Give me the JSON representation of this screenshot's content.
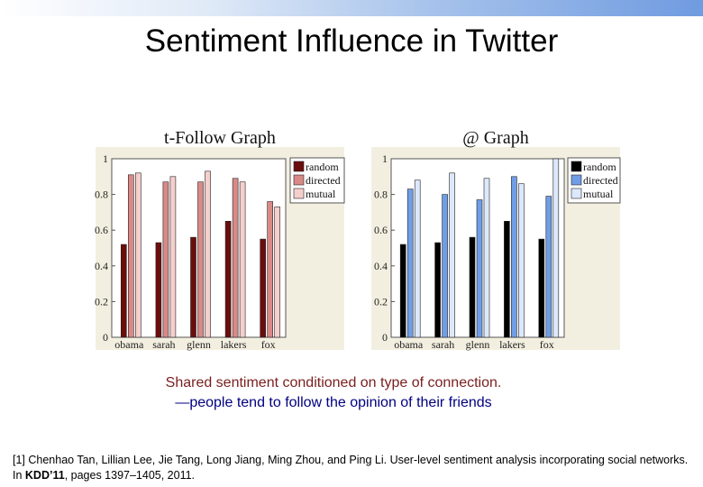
{
  "slide": {
    "title": "Sentiment Influence in Twitter",
    "caption_line1": "Shared sentiment conditioned on type of connection.",
    "caption_line2": "—people tend to follow the opinion of their friends",
    "reference_prefix": "[1] Chenhao Tan, Lillian Lee, Jie Tang, Long Jiang, Ming Zhou, and Ping Li. User-level sentiment analysis incorporating social networks. In ",
    "reference_venue": "KDD’11",
    "reference_suffix": ",  pages 1397–1405, 2011."
  },
  "colors": {
    "panel_bg": "#f3efe0",
    "left": {
      "random": "#6b0d0d",
      "directed": "#d98a86",
      "mutual": "#f4cfcc"
    },
    "right": {
      "random": "#000000",
      "directed": "#6f9ee6",
      "mutual": "#dce8fb"
    }
  },
  "chart_data": [
    {
      "type": "bar",
      "title": "t-Follow Graph",
      "categories": [
        "obama",
        "sarah",
        "glenn",
        "lakers",
        "fox"
      ],
      "ylim": [
        0,
        1
      ],
      "yticks": [
        "0",
        "0.2",
        "0.4",
        "0.6",
        "0.8",
        "1"
      ],
      "legend_position": "top-right",
      "series": [
        {
          "name": "random",
          "values": [
            0.52,
            0.53,
            0.56,
            0.65,
            0.55
          ]
        },
        {
          "name": "directed",
          "values": [
            0.91,
            0.87,
            0.87,
            0.89,
            0.76
          ]
        },
        {
          "name": "mutual",
          "values": [
            0.92,
            0.9,
            0.93,
            0.87,
            0.73
          ]
        }
      ]
    },
    {
      "type": "bar",
      "title": "@ Graph",
      "categories": [
        "obama",
        "sarah",
        "glenn",
        "lakers",
        "fox"
      ],
      "ylim": [
        0,
        1
      ],
      "yticks": [
        "0",
        "0.2",
        "0.4",
        "0.6",
        "0.8",
        "1"
      ],
      "legend_position": "top-right",
      "series": [
        {
          "name": "random",
          "values": [
            0.52,
            0.53,
            0.56,
            0.65,
            0.55
          ]
        },
        {
          "name": "directed",
          "values": [
            0.83,
            0.8,
            0.77,
            0.9,
            0.79
          ]
        },
        {
          "name": "mutual",
          "values": [
            0.88,
            0.92,
            0.89,
            0.86,
            1.0
          ]
        }
      ]
    }
  ]
}
